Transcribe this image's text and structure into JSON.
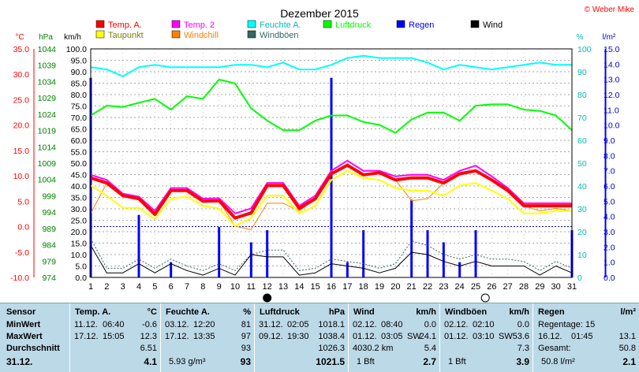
{
  "title": "Dezember 2015",
  "copyright": "© Weber Mike",
  "legend": [
    {
      "label": "Temp. A.",
      "color": "#ff0000"
    },
    {
      "label": "Temp. 2",
      "color": "#ff00ff"
    },
    {
      "label": "Feuchte A.",
      "color": "#00ffff"
    },
    {
      "label": "Luftdruck",
      "color": "#00ff00"
    },
    {
      "label": "Regen",
      "color": "#0000ff"
    },
    {
      "label": "Wind",
      "color": "#000000"
    },
    {
      "label": "Taupunkt",
      "color": "#ffff00"
    },
    {
      "label": "Windchill",
      "color": "#ff8000"
    },
    {
      "label": "Windböen",
      "color": "#336666"
    }
  ],
  "chart_data": {
    "type": "line",
    "title": "Dezember 2015",
    "x": [
      1,
      2,
      3,
      4,
      5,
      6,
      7,
      8,
      9,
      10,
      11,
      12,
      13,
      14,
      15,
      16,
      17,
      18,
      19,
      20,
      21,
      22,
      23,
      24,
      25,
      26,
      27,
      28,
      29,
      30,
      31
    ],
    "axes": {
      "temp_c": {
        "label": "°C",
        "range": [
          -10,
          35
        ],
        "ticks": [
          "35.0",
          "30.0",
          "25.0",
          "20.0",
          "15.0",
          "10.0",
          "5.0",
          "0.0",
          "-5.0",
          "-10.0"
        ]
      },
      "pressure_hpa": {
        "label": "hPa",
        "range": [
          974,
          1044
        ],
        "ticks": [
          "1044",
          "1039",
          "1034",
          "1029",
          "1024",
          "1019",
          "1014",
          "1009",
          "1004",
          "999",
          "994",
          "989",
          "984",
          "979",
          "974"
        ]
      },
      "wind_kmh": {
        "label": "km/h",
        "range": [
          0,
          100
        ],
        "ticks": [
          "100.0",
          "95.0",
          "90.0",
          "85.0",
          "80.0",
          "75.0",
          "70.0",
          "65.0",
          "60.0",
          "55.0",
          "50.0",
          "45.0",
          "40.0",
          "35.0",
          "30.0",
          "25.0",
          "20.0",
          "15.0",
          "10.0",
          "5.0",
          "0.0"
        ]
      },
      "humidity_pct": {
        "label": "%",
        "range": [
          0,
          100
        ],
        "ticks": [
          "100",
          "90",
          "80",
          "70",
          "60",
          "50",
          "40",
          "30",
          "20",
          "10",
          "0"
        ]
      },
      "rain_lm2": {
        "label": "l/m²",
        "range": [
          0,
          15
        ],
        "ticks": [
          "15.0",
          "14.0",
          "13.0",
          "12.0",
          "11.0",
          "10.0",
          "9.0",
          "8.0",
          "7.0",
          "6.0",
          "5.0",
          "4.0",
          "3.0",
          "2.0",
          "1.0",
          "0.0"
        ]
      }
    },
    "series": [
      {
        "name": "Temp. A.",
        "color": "#ff0000",
        "values": [
          9.6,
          8.6,
          6.1,
          5.5,
          2.4,
          7.1,
          7.1,
          5.0,
          5.1,
          1.7,
          2.7,
          8.1,
          8.1,
          3.6,
          5.5,
          10.4,
          12.1,
          10.2,
          10.6,
          9.2,
          9.6,
          9.6,
          8.6,
          10.4,
          11.0,
          9.2,
          7.1,
          4.1,
          4.1,
          4.1,
          4.1
        ]
      },
      {
        "name": "Temp. 2",
        "color": "#ff00ff",
        "values": [
          10.2,
          9.2,
          6.5,
          5.9,
          3.1,
          7.6,
          7.6,
          5.5,
          5.6,
          2.6,
          3.6,
          8.6,
          8.6,
          4.1,
          6.1,
          11.0,
          13.0,
          11.0,
          11.0,
          9.9,
          10.2,
          10.2,
          9.2,
          11.0,
          12.0,
          9.9,
          7.6,
          4.6,
          4.6,
          4.6,
          4.6
        ]
      },
      {
        "name": "Taupunkt",
        "color": "#ffff00",
        "values": [
          8.1,
          6.1,
          3.7,
          3.7,
          1.5,
          5.5,
          5.9,
          4.1,
          3.6,
          0.1,
          1.7,
          6.1,
          6.1,
          2.6,
          4.1,
          9.2,
          11.0,
          9.6,
          9.2,
          7.6,
          7.1,
          7.1,
          6.1,
          8.1,
          8.6,
          7.1,
          5.5,
          2.6,
          2.6,
          3.1,
          3.1
        ]
      },
      {
        "name": "Windchill",
        "color": "#ff8000",
        "values": [
          2.6,
          8.6,
          6.1,
          5.5,
          2.4,
          7.1,
          7.1,
          5.0,
          5.1,
          0.1,
          -0.6,
          4.6,
          4.6,
          3.1,
          5.5,
          10.4,
          12.1,
          10.2,
          10.6,
          9.2,
          5.1,
          5.5,
          8.6,
          10.4,
          11.0,
          9.2,
          7.1,
          4.1,
          3.1,
          3.6,
          3.1
        ]
      },
      {
        "name": "Feuchte A.",
        "color": "#00ffff",
        "values": [
          92,
          91,
          88,
          92,
          93,
          92,
          92,
          92,
          92,
          93,
          93,
          92,
          94,
          91,
          91,
          93,
          96,
          97,
          96,
          96,
          96,
          94,
          91,
          93,
          92,
          91,
          92,
          93,
          94,
          93,
          93
        ]
      },
      {
        "name": "Luftdruck",
        "color": "#00ff00",
        "values": [
          1023.6,
          1026.6,
          1026.2,
          1027.5,
          1028.7,
          1025.4,
          1029.5,
          1028.7,
          1034.6,
          1033.4,
          1025.8,
          1022.0,
          1019.1,
          1019.1,
          1022.0,
          1023.6,
          1023.6,
          1021.6,
          1020.7,
          1018.3,
          1022.4,
          1024.5,
          1024.5,
          1022.0,
          1026.6,
          1027.0,
          1027.0,
          1025.4,
          1025.0,
          1023.6,
          1019.1
        ]
      },
      {
        "name": "Wind",
        "color": "#000000",
        "values": [
          14,
          2,
          2,
          6,
          2,
          6,
          3,
          1,
          4,
          1,
          10,
          9,
          9,
          1,
          2,
          6,
          5,
          4,
          2,
          4,
          11,
          10,
          7,
          5,
          7,
          5,
          5,
          5,
          1,
          5,
          2
        ]
      },
      {
        "name": "Windböen",
        "color": "#336666",
        "values": [
          17,
          4,
          4,
          8,
          4,
          8,
          5,
          3,
          6,
          3,
          10,
          12,
          12,
          3,
          4,
          8,
          7,
          6,
          4,
          6,
          16,
          14,
          10,
          8,
          10,
          8,
          8,
          7,
          3,
          7,
          4
        ]
      }
    ],
    "bars": {
      "name": "Regen",
      "color": "#0000ff",
      "values": [
        13.1,
        0,
        0,
        4.1,
        0,
        1.0,
        0,
        0,
        3.3,
        0,
        2.3,
        3.1,
        0,
        0,
        0,
        13.1,
        1.0,
        3.1,
        0,
        0,
        5.1,
        3.1,
        2.3,
        1.0,
        3.1,
        0,
        0,
        0,
        0,
        0,
        3.1
      ]
    },
    "moon_markers": [
      {
        "day": 12,
        "phase": "new"
      },
      {
        "day": 25.6,
        "phase": "full"
      }
    ],
    "grid": true
  },
  "stats": {
    "headers": {
      "sensor": "Sensor",
      "temp": "Temp. A.",
      "temp_unit": "°C",
      "hum": "Feuchte A.",
      "hum_unit": "%",
      "press": "Luftdruck",
      "press_unit": "hPa",
      "wind": "Wind",
      "wind_unit": "km/h",
      "gust": "Windböen",
      "gust_unit": "km/h",
      "rain": "Regen",
      "rain_unit": "l/m²"
    },
    "row_labels": [
      "MinWert",
      "MaxWert",
      "Durchschnitt",
      "31.12."
    ],
    "temp": [
      [
        "11.12.",
        "06:40",
        "-0.6"
      ],
      [
        "17.12.",
        "15:05",
        "12.3"
      ],
      [
        "",
        "",
        "6.51"
      ],
      [
        "",
        "",
        "4.1"
      ]
    ],
    "hum": [
      [
        "03.12.",
        "12:20",
        "81"
      ],
      [
        "17.12.",
        "13:35",
        "97"
      ],
      [
        "",
        "",
        "93"
      ],
      [
        "5.93 g/m³",
        "",
        "93"
      ]
    ],
    "press": [
      [
        "31.12.",
        "02:05",
        "1018.1"
      ],
      [
        "09.12.",
        "19:30",
        "1038.4"
      ],
      [
        "",
        "",
        "1026.3"
      ],
      [
        "",
        "",
        "1021.5"
      ]
    ],
    "wind": [
      [
        "02.12.",
        "08:40",
        "",
        "0.0"
      ],
      [
        "01.12.",
        "03:05",
        "SW",
        "24.1"
      ],
      [
        "4030.2 km",
        "",
        "",
        "5.4"
      ],
      [
        "1 Bft",
        "",
        "",
        "2.7"
      ]
    ],
    "gust": [
      [
        "02.12.",
        "02:10",
        "",
        "0.0"
      ],
      [
        "01.12.",
        "03:10",
        "SW",
        "53.6"
      ],
      [
        "",
        "",
        "",
        "7.3"
      ],
      [
        "1 Bft",
        "",
        "",
        "3.9"
      ]
    ],
    "rain": [
      [
        "Regentage:",
        "15",
        ""
      ],
      [
        "16.12.",
        "01:45",
        "13.1"
      ],
      [
        "Gesamt:",
        "",
        "50.8"
      ],
      [
        "50.8 l/m²",
        "",
        "2.1"
      ]
    ]
  }
}
